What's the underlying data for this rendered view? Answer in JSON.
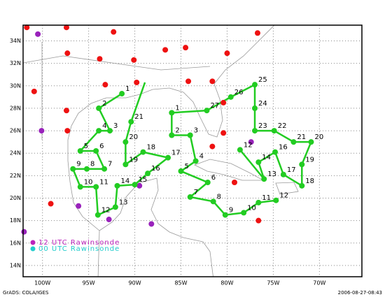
{
  "map": {
    "lonlim": [
      -102.1,
      -65.4
    ],
    "latlim": [
      13,
      35.4
    ],
    "lonticks": [
      {
        "value": -100,
        "label": "100W"
      },
      {
        "value": -95,
        "label": "95W"
      },
      {
        "value": -90,
        "label": "90W"
      },
      {
        "value": -85,
        "label": "85W"
      },
      {
        "value": -80,
        "label": "80W"
      },
      {
        "value": -75,
        "label": "75W"
      },
      {
        "value": -70,
        "label": "70W"
      }
    ],
    "latticks": [
      {
        "value": 14,
        "label": "14N"
      },
      {
        "value": 16,
        "label": "16N"
      },
      {
        "value": 18,
        "label": "18N"
      },
      {
        "value": 20,
        "label": "20N"
      },
      {
        "value": 22,
        "label": "22N"
      },
      {
        "value": 24,
        "label": "24N"
      },
      {
        "value": 26,
        "label": "26N"
      },
      {
        "value": 28,
        "label": "28N"
      },
      {
        "value": 30,
        "label": "30N"
      },
      {
        "value": 32,
        "label": "32N"
      },
      {
        "value": 34,
        "label": "34N"
      }
    ],
    "track_color": "#22cc22",
    "tracks": [
      {
        "points": [
          {
            "label": "1",
            "lon": -91.4,
            "lat": 29.3
          },
          {
            "label": "2",
            "lon": -93.9,
            "lat": 28.0
          },
          {
            "label": "3",
            "lon": -92.7,
            "lat": 26.0
          },
          {
            "label": "4",
            "lon": -93.9,
            "lat": 26.0
          },
          {
            "label": "5",
            "lon": -95.9,
            "lat": 24.2
          },
          {
            "label": "6",
            "lon": -94.2,
            "lat": 24.2
          },
          {
            "label": "7",
            "lon": -93.3,
            "lat": 22.6
          },
          {
            "label": "8",
            "lon": -95.2,
            "lat": 22.6
          },
          {
            "label": "9",
            "lon": -96.7,
            "lat": 22.6
          },
          {
            "label": "10",
            "lon": -95.9,
            "lat": 21.0
          },
          {
            "label": "11",
            "lon": -94.2,
            "lat": 21.0
          },
          {
            "label": "12",
            "lon": -94.0,
            "lat": 18.5
          },
          {
            "label": "13",
            "lon": -92.1,
            "lat": 19.2
          },
          {
            "label": "14",
            "lon": -91.9,
            "lat": 21.1
          },
          {
            "label": "15",
            "lon": -90.0,
            "lat": 21.2
          },
          {
            "label": "16",
            "lon": -88.6,
            "lat": 22.2
          },
          {
            "label": "17",
            "lon": -86.4,
            "lat": 23.6
          },
          {
            "label": "18",
            "lon": -89.1,
            "lat": 24.1
          },
          {
            "label": "19",
            "lon": -91.0,
            "lat": 23.0
          },
          {
            "label": "20",
            "lon": -91.0,
            "lat": 25.0
          },
          {
            "label": "21",
            "lon": -90.4,
            "lat": 26.8
          },
          {
            "label": null,
            "lon": -88.9,
            "lat": 30.3
          }
        ]
      },
      {
        "points": [
          {
            "label": "1",
            "lon": -86.0,
            "lat": 27.6
          },
          {
            "label": "2",
            "lon": -86.0,
            "lat": 25.6
          },
          {
            "label": "3",
            "lon": -84.0,
            "lat": 25.6
          },
          {
            "label": "4",
            "lon": -83.4,
            "lat": 23.3
          },
          {
            "label": "5",
            "lon": -85.0,
            "lat": 22.4
          },
          {
            "label": "6",
            "lon": -82.1,
            "lat": 21.4
          },
          {
            "label": "7",
            "lon": -84.0,
            "lat": 20.1
          },
          {
            "label": "8",
            "lon": -81.5,
            "lat": 19.7
          },
          {
            "label": "9",
            "lon": -80.2,
            "lat": 18.5
          },
          {
            "label": "10",
            "lon": -78.2,
            "lat": 18.7
          },
          {
            "label": "11",
            "lon": -76.6,
            "lat": 19.6
          },
          {
            "label": "12",
            "lon": -74.7,
            "lat": 19.8
          }
        ]
      },
      {
        "points": [
          {
            "label": "12",
            "lon": -78.6,
            "lat": 24.3
          },
          {
            "label": "13",
            "lon": -76.0,
            "lat": 21.7
          },
          {
            "label": "14",
            "lon": -76.6,
            "lat": 23.2
          },
          {
            "label": "16",
            "lon": -74.8,
            "lat": 24.1
          },
          {
            "label": "17",
            "lon": -73.9,
            "lat": 22.1
          },
          {
            "label": "18",
            "lon": -71.9,
            "lat": 21.1
          },
          {
            "label": "19",
            "lon": -71.9,
            "lat": 23.0
          },
          {
            "label": "20",
            "lon": -70.9,
            "lat": 25.0
          },
          {
            "label": "21",
            "lon": -72.8,
            "lat": 25.0
          },
          {
            "label": "22",
            "lon": -74.9,
            "lat": 26.0
          },
          {
            "label": "23",
            "lon": -77.0,
            "lat": 26.0
          },
          {
            "label": "24",
            "lon": -77.0,
            "lat": 28.0
          },
          {
            "label": "25",
            "lon": -77.0,
            "lat": 30.1
          },
          {
            "label": "26",
            "lon": -79.6,
            "lat": 29.0
          },
          {
            "label": "27",
            "lon": -82.2,
            "lat": 27.8
          },
          {
            "label": null,
            "lon": -86.0,
            "lat": 27.6
          }
        ]
      }
    ],
    "stations": [
      {
        "name": "12 UTC Rawinsonde",
        "color": "#ee1111",
        "legend_color": "#bb22bb",
        "points": [
          {
            "lon": -101.7,
            "lat": 35.2
          },
          {
            "lon": -97.4,
            "lat": 35.2
          },
          {
            "lon": -92.3,
            "lat": 34.8
          },
          {
            "lon": -97.3,
            "lat": 32.9
          },
          {
            "lon": -93.8,
            "lat": 32.4
          },
          {
            "lon": -90.1,
            "lat": 32.3
          },
          {
            "lon": -86.7,
            "lat": 33.2
          },
          {
            "lon": -84.5,
            "lat": 33.4
          },
          {
            "lon": -80.0,
            "lat": 32.9
          },
          {
            "lon": -76.7,
            "lat": 34.7
          },
          {
            "lon": -93.2,
            "lat": 30.1
          },
          {
            "lon": -89.8,
            "lat": 30.3
          },
          {
            "lon": -84.2,
            "lat": 30.4
          },
          {
            "lon": -81.6,
            "lat": 30.4
          },
          {
            "lon": -100.9,
            "lat": 29.5
          },
          {
            "lon": -97.4,
            "lat": 27.8
          },
          {
            "lon": -97.3,
            "lat": 26.0
          },
          {
            "lon": -80.4,
            "lat": 28.5
          },
          {
            "lon": -80.4,
            "lat": 25.8
          },
          {
            "lon": -81.6,
            "lat": 24.6
          },
          {
            "lon": -99.1,
            "lat": 19.5
          },
          {
            "lon": -76.6,
            "lat": 18.0
          },
          {
            "lon": -79.2,
            "lat": 21.4
          }
        ]
      },
      {
        "name": "00 UTC Rawinsonde",
        "color": "#9922bb",
        "legend_color": "#22cccc",
        "points": [
          {
            "lon": -100.5,
            "lat": 34.6
          },
          {
            "lon": -100.1,
            "lat": 26.0
          },
          {
            "lon": -77.4,
            "lat": 25.0
          },
          {
            "lon": -89.5,
            "lat": 21.1
          },
          {
            "lon": -96.1,
            "lat": 19.3
          },
          {
            "lon": -92.8,
            "lat": 18.1
          },
          {
            "lon": -88.2,
            "lat": 17.7
          },
          {
            "lon": -102.0,
            "lat": 17.0
          }
        ]
      }
    ]
  },
  "footer": {
    "left": "GrADS: COLA/IGES",
    "right": "2006-08-27-08:43"
  }
}
